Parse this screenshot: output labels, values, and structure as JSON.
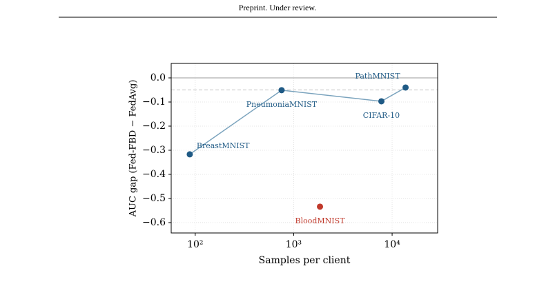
{
  "header": "Preprint. Under review.",
  "chart_data": {
    "type": "scatter",
    "xlabel": "Samples per client",
    "ylabel": "AUC gap (Fed-FBD − FedAvg)",
    "xscale": "log",
    "xlim": [
      57,
      29000
    ],
    "ylim": [
      -0.643,
      0.06
    ],
    "xticks": [
      {
        "value": 100,
        "label": "10²"
      },
      {
        "value": 1000,
        "label": "10³"
      },
      {
        "value": 10000,
        "label": "10⁴"
      }
    ],
    "yticks": [
      {
        "value": 0,
        "label": "0.0"
      },
      {
        "value": -0.1,
        "label": "−0.1"
      },
      {
        "value": -0.2,
        "label": "−0.2"
      },
      {
        "value": -0.3,
        "label": "−0.3"
      },
      {
        "value": -0.4,
        "label": "−0.4"
      },
      {
        "value": -0.5,
        "label": "−0.5"
      },
      {
        "value": -0.6,
        "label": "−0.6"
      }
    ],
    "grid": true,
    "reference_lines": [
      0,
      -0.05
    ],
    "series": [
      {
        "color": "#1f5a85",
        "line_color": "#7aa3bd",
        "connected": true,
        "point_labels": [
          "BreastMNIST",
          "PneumoniaMNIST",
          "CIFAR-10",
          "PathMNIST"
        ],
        "x": [
          88,
          754,
          7780,
          13700
        ],
        "values": [
          -0.317,
          -0.051,
          -0.097,
          -0.04
        ]
      },
      {
        "color": "#c0392b",
        "connected": false,
        "point_labels": [
          "BloodMNIST"
        ],
        "x": [
          1850
        ],
        "values": [
          -0.534
        ]
      }
    ]
  }
}
